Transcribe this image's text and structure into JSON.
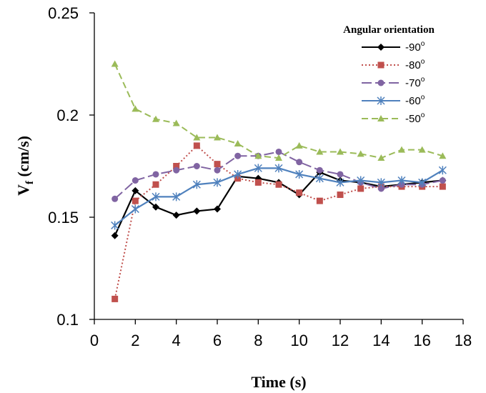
{
  "chart_data": {
    "type": "line",
    "xlabel": "Time (s)",
    "ylabel_main": "V",
    "ylabel_sub": "f",
    "ylabel_unit": " (cm/s)",
    "xlim": [
      0,
      18
    ],
    "ylim": [
      0.1,
      0.25
    ],
    "xticks": [
      0,
      2,
      4,
      6,
      8,
      10,
      12,
      14,
      16,
      18
    ],
    "yticks": [
      "0.1",
      "0.15",
      "0.2",
      "0.25"
    ],
    "grid": false,
    "legend_title": "Angular orientation",
    "legend_position": "top-right",
    "x": [
      1,
      2,
      3,
      4,
      5,
      6,
      7,
      8,
      9,
      10,
      11,
      12,
      13,
      14,
      15,
      16,
      17
    ],
    "series": [
      {
        "name": "-90",
        "degree": "o",
        "color": "#000000",
        "marker": "diamond",
        "dash": "solid",
        "values": [
          0.141,
          0.163,
          0.155,
          0.151,
          0.153,
          0.154,
          0.17,
          0.169,
          0.167,
          0.161,
          0.172,
          0.168,
          0.167,
          0.165,
          0.166,
          0.167,
          0.168
        ]
      },
      {
        "name": "-80",
        "degree": "o",
        "color": "#c0504d",
        "marker": "square",
        "dash": "dotted",
        "values": [
          0.11,
          0.158,
          0.166,
          0.175,
          0.185,
          0.176,
          0.169,
          0.167,
          0.166,
          0.162,
          0.158,
          0.161,
          0.164,
          0.165,
          0.165,
          0.165,
          0.165
        ]
      },
      {
        "name": "-70",
        "degree": "o",
        "color": "#8064a2",
        "marker": "circle",
        "dash": "dashdot",
        "values": [
          0.159,
          0.168,
          0.171,
          0.173,
          0.175,
          0.173,
          0.18,
          0.18,
          0.182,
          0.177,
          0.173,
          0.171,
          0.167,
          0.164,
          0.166,
          0.166,
          0.168
        ]
      },
      {
        "name": "-60",
        "degree": "o",
        "color": "#4f81bd",
        "marker": "asterisk",
        "dash": "solid",
        "values": [
          0.146,
          0.154,
          0.16,
          0.16,
          0.166,
          0.167,
          0.171,
          0.174,
          0.174,
          0.171,
          0.169,
          0.167,
          0.168,
          0.167,
          0.168,
          0.167,
          0.173
        ]
      },
      {
        "name": "-50",
        "degree": "o",
        "color": "#9bbb59",
        "marker": "triangle",
        "dash": "dashed",
        "values": [
          0.225,
          0.203,
          0.198,
          0.196,
          0.189,
          0.189,
          0.186,
          0.18,
          0.179,
          0.185,
          0.182,
          0.182,
          0.181,
          0.179,
          0.183,
          0.183,
          0.18
        ]
      }
    ]
  }
}
